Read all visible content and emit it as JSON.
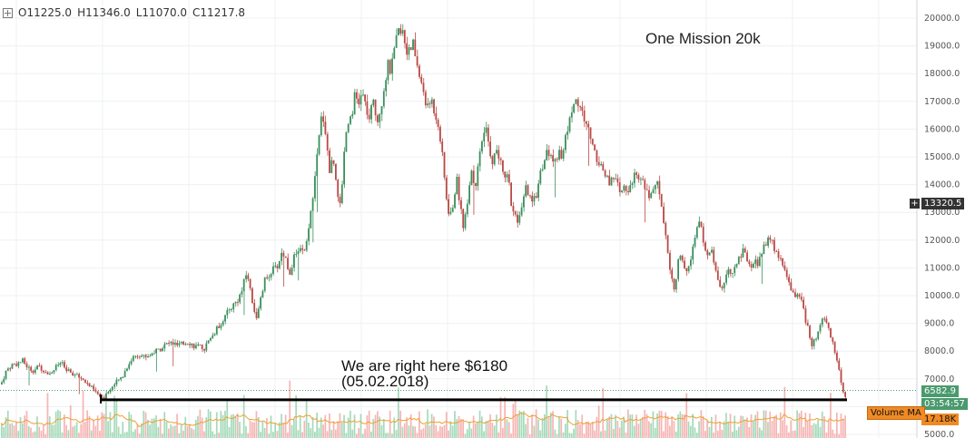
{
  "ohlc": {
    "open": "O11225.0",
    "high": "H11346.0",
    "low": "L11070.0",
    "close": "C11217.8"
  },
  "annotations": {
    "title": "One Mission 20k",
    "note_line1": "We are right here $6180",
    "note_line2": "(05.02.2018)"
  },
  "price_tags": {
    "crosshair": "13320.5",
    "last_price": "6582.9",
    "countdown": "03:54:57",
    "volume_label": "Volume MA",
    "volume_value": "17.18K"
  },
  "colors": {
    "up": "#3a8f5c",
    "down": "#b94a45",
    "vol_up": "#8ed1a9",
    "vol_down": "#f2a3a0",
    "vol_ma": "#f0a030",
    "support": "#000000",
    "last_tag": "#4a9a6e",
    "vol_tag": "#f08a24"
  },
  "chart_data": {
    "type": "candlestick",
    "title": "One Mission 20k",
    "y_ticks": [
      5000,
      6000,
      7000,
      8000,
      9000,
      10000,
      11000,
      12000,
      13000,
      14000,
      15000,
      16000,
      17000,
      18000,
      19000,
      20000
    ],
    "ylim": [
      4900,
      20450
    ],
    "support_level": 6180,
    "last_price": 6582.9,
    "close_path": [
      [
        0,
        6800
      ],
      [
        6,
        7300
      ],
      [
        12,
        7500
      ],
      [
        18,
        7550
      ],
      [
        24,
        7650
      ],
      [
        30,
        7400
      ],
      [
        36,
        7300
      ],
      [
        42,
        7450
      ],
      [
        48,
        7300
      ],
      [
        54,
        7200
      ],
      [
        60,
        7400
      ],
      [
        66,
        7600
      ],
      [
        72,
        7300
      ],
      [
        78,
        7200
      ],
      [
        84,
        7100
      ],
      [
        90,
        7000
      ],
      [
        96,
        6800
      ],
      [
        102,
        6600
      ],
      [
        108,
        6400
      ],
      [
        112,
        6250
      ],
      [
        116,
        6500
      ],
      [
        122,
        6700
      ],
      [
        128,
        6900
      ],
      [
        134,
        7100
      ],
      [
        140,
        7500
      ],
      [
        146,
        7800
      ],
      [
        152,
        7900
      ],
      [
        158,
        7800
      ],
      [
        164,
        7850
      ],
      [
        170,
        8000
      ],
      [
        176,
        8100
      ],
      [
        182,
        8250
      ],
      [
        188,
        8300
      ],
      [
        194,
        8200
      ],
      [
        200,
        8250
      ],
      [
        206,
        8350
      ],
      [
        212,
        8200
      ],
      [
        218,
        8150
      ],
      [
        224,
        8100
      ],
      [
        230,
        8400
      ],
      [
        236,
        8700
      ],
      [
        242,
        9000
      ],
      [
        248,
        9300
      ],
      [
        254,
        9600
      ],
      [
        260,
        9800
      ],
      [
        266,
        10200
      ],
      [
        270,
        10800
      ],
      [
        274,
        10400
      ],
      [
        278,
        9600
      ],
      [
        282,
        9200
      ],
      [
        286,
        9800
      ],
      [
        290,
        10500
      ],
      [
        294,
        10700
      ],
      [
        298,
        10900
      ],
      [
        304,
        11000
      ],
      [
        310,
        11600
      ],
      [
        314,
        11300
      ],
      [
        318,
        10800
      ],
      [
        322,
        11300
      ],
      [
        328,
        11700
      ],
      [
        334,
        11500
      ],
      [
        338,
        12000
      ],
      [
        342,
        13200
      ],
      [
        346,
        14200
      ],
      [
        350,
        15500
      ],
      [
        354,
        16700
      ],
      [
        358,
        15800
      ],
      [
        362,
        14500
      ],
      [
        366,
        15000
      ],
      [
        370,
        14000
      ],
      [
        374,
        13100
      ],
      [
        378,
        15200
      ],
      [
        382,
        16300
      ],
      [
        386,
        16500
      ],
      [
        390,
        17200
      ],
      [
        394,
        16900
      ],
      [
        398,
        17300
      ],
      [
        402,
        16800
      ],
      [
        406,
        16300
      ],
      [
        410,
        17000
      ],
      [
        414,
        16300
      ],
      [
        418,
        16700
      ],
      [
        422,
        17500
      ],
      [
        426,
        18300
      ],
      [
        430,
        18100
      ],
      [
        434,
        18900
      ],
      [
        438,
        19500
      ],
      [
        442,
        19700
      ],
      [
        446,
        19000
      ],
      [
        450,
        18700
      ],
      [
        454,
        19100
      ],
      [
        458,
        18400
      ],
      [
        462,
        17700
      ],
      [
        466,
        17300
      ],
      [
        470,
        16700
      ],
      [
        474,
        17100
      ],
      [
        478,
        16600
      ],
      [
        482,
        16200
      ],
      [
        486,
        15100
      ],
      [
        490,
        13800
      ],
      [
        494,
        12700
      ],
      [
        498,
        13300
      ],
      [
        502,
        14200
      ],
      [
        506,
        13300
      ],
      [
        510,
        12400
      ],
      [
        514,
        13500
      ],
      [
        518,
        14600
      ],
      [
        522,
        13900
      ],
      [
        526,
        14600
      ],
      [
        530,
        15600
      ],
      [
        534,
        16000
      ],
      [
        538,
        15300
      ],
      [
        542,
        14800
      ],
      [
        546,
        15300
      ],
      [
        550,
        14800
      ],
      [
        554,
        14300
      ],
      [
        558,
        14500
      ],
      [
        562,
        13400
      ],
      [
        566,
        12800
      ],
      [
        570,
        12600
      ],
      [
        574,
        13100
      ],
      [
        578,
        13900
      ],
      [
        582,
        13500
      ],
      [
        586,
        13300
      ],
      [
        590,
        13700
      ],
      [
        594,
        14400
      ],
      [
        598,
        14800
      ],
      [
        602,
        15200
      ],
      [
        606,
        15000
      ],
      [
        610,
        14800
      ],
      [
        614,
        15200
      ],
      [
        618,
        15100
      ],
      [
        622,
        15600
      ],
      [
        626,
        16300
      ],
      [
        630,
        16900
      ],
      [
        634,
        17000
      ],
      [
        638,
        16800
      ],
      [
        642,
        16400
      ],
      [
        646,
        16100
      ],
      [
        650,
        15700
      ],
      [
        654,
        15200
      ],
      [
        658,
        14800
      ],
      [
        662,
        14700
      ],
      [
        666,
        14300
      ],
      [
        670,
        14100
      ],
      [
        674,
        14400
      ],
      [
        678,
        14100
      ],
      [
        682,
        13600
      ],
      [
        686,
        13900
      ],
      [
        690,
        13700
      ],
      [
        694,
        14100
      ],
      [
        698,
        14300
      ],
      [
        702,
        14100
      ],
      [
        706,
        14300
      ],
      [
        710,
        13900
      ],
      [
        714,
        13400
      ],
      [
        718,
        13900
      ],
      [
        722,
        14200
      ],
      [
        726,
        13600
      ],
      [
        730,
        12800
      ],
      [
        734,
        11700
      ],
      [
        738,
        10700
      ],
      [
        742,
        10300
      ],
      [
        746,
        11200
      ],
      [
        750,
        11400
      ],
      [
        754,
        10700
      ],
      [
        758,
        11100
      ],
      [
        762,
        11600
      ],
      [
        766,
        12300
      ],
      [
        770,
        12700
      ],
      [
        774,
        12000
      ],
      [
        778,
        11400
      ],
      [
        782,
        11700
      ],
      [
        786,
        11100
      ],
      [
        790,
        10600
      ],
      [
        794,
        10200
      ],
      [
        798,
        10500
      ],
      [
        802,
        11000
      ],
      [
        806,
        10800
      ],
      [
        810,
        11200
      ],
      [
        814,
        11300
      ],
      [
        818,
        11600
      ],
      [
        822,
        11300
      ],
      [
        826,
        10900
      ],
      [
        830,
        11400
      ],
      [
        834,
        11100
      ],
      [
        838,
        11600
      ],
      [
        842,
        11800
      ],
      [
        846,
        12100
      ],
      [
        850,
        11900
      ],
      [
        854,
        11500
      ],
      [
        858,
        11400
      ],
      [
        862,
        11100
      ],
      [
        866,
        10600
      ],
      [
        870,
        10300
      ],
      [
        874,
        10000
      ],
      [
        878,
        10100
      ],
      [
        882,
        9800
      ],
      [
        886,
        9200
      ],
      [
        890,
        8700
      ],
      [
        894,
        8200
      ],
      [
        898,
        8500
      ],
      [
        902,
        9000
      ],
      [
        906,
        9300
      ],
      [
        910,
        9100
      ],
      [
        914,
        8600
      ],
      [
        918,
        8000
      ],
      [
        922,
        7600
      ],
      [
        926,
        6800
      ],
      [
        930,
        6250
      ],
      [
        932,
        6600
      ]
    ]
  }
}
